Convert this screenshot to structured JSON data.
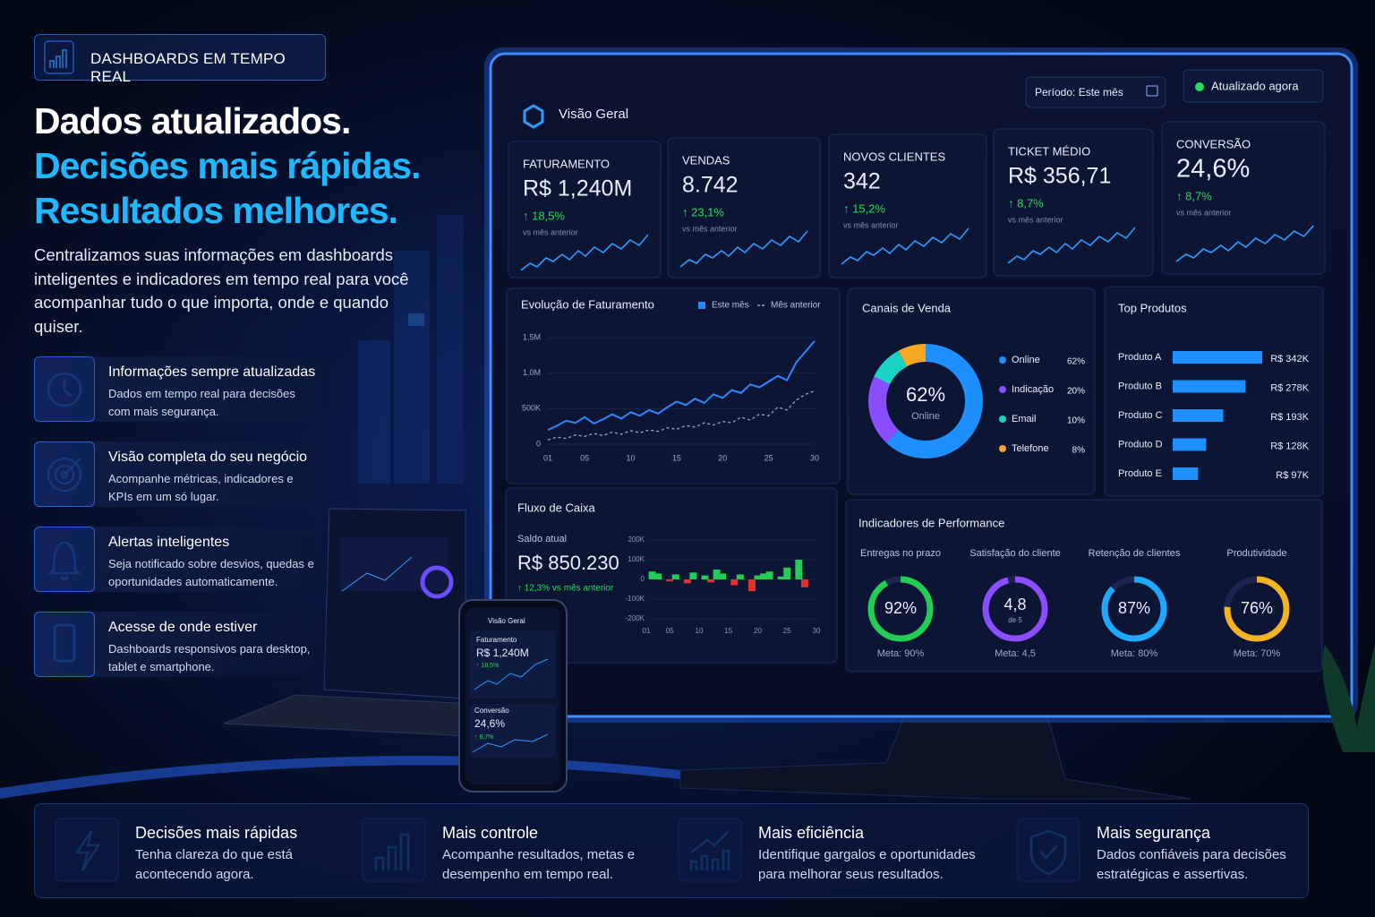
{
  "badge": "DASHBOARDS EM TEMPO REAL",
  "headline": [
    "Dados atualizados.",
    "Decisões mais rápidas.",
    "Resultados melhores."
  ],
  "intro": "Centralizamos suas informações em dashboards inteligentes e indicadores em tempo real para você acompanhar tudo o que importa, onde e quando quiser.",
  "features": [
    {
      "title": "Informações sempre atualizadas",
      "text": "Dados em tempo real para decisões com mais segurança."
    },
    {
      "title": "Visão completa do seu negócio",
      "text": "Acompanhe métricas, indicadores e KPIs em um só lugar."
    },
    {
      "title": "Alertas inteligentes",
      "text": "Seja notificado sobre desvios, quedas e oportunidades automaticamente."
    },
    {
      "title": "Acesse de onde estiver",
      "text": "Dashboards responsivos para desktop, tablet e smartphone."
    }
  ],
  "benefits": [
    {
      "title": "Decisões mais rápidas",
      "text": "Tenha clareza do que está acontecendo agora."
    },
    {
      "title": "Mais controle",
      "text": "Acompanhe resultados, metas e desempenho em tempo real."
    },
    {
      "title": "Mais eficiência",
      "text": "Identifique gargalos e oportunidades para melhorar seus resultados."
    },
    {
      "title": "Mais segurança",
      "text": "Dados confiáveis para decisões estratégicas e assertivas."
    }
  ],
  "dashboard": {
    "title": "Visão Geral",
    "period": "Período: Este mês",
    "status": "Atualizado agora",
    "kpis": [
      {
        "label": "FATURAMENTO",
        "value": "R$ 1,240M",
        "change": "↑ 18,5%",
        "note": "vs mês anterior"
      },
      {
        "label": "VENDAS",
        "value": "8.742",
        "change": "↑ 23,1%",
        "note": "vs mês anterior"
      },
      {
        "label": "NOVOS CLIENTES",
        "value": "342",
        "change": "↑ 15,2%",
        "note": "vs mês anterior"
      },
      {
        "label": "TICKET MÉDIO",
        "value": "R$ 356,71",
        "change": "↑ 8,7%",
        "note": "vs mês anterior"
      },
      {
        "label": "CONVERSÃO",
        "value": "24,6%",
        "change": "↑ 8,7%",
        "note": "vs mês anterior"
      }
    ],
    "revenue_chart": {
      "type": "line",
      "title": "Evolução de Faturamento",
      "x": [
        1,
        2,
        3,
        4,
        5,
        6,
        7,
        8,
        9,
        10,
        11,
        12,
        13,
        14,
        15,
        16,
        17,
        18,
        19,
        20,
        21,
        22,
        23,
        24,
        25,
        26,
        27,
        28,
        29,
        30
      ],
      "series": [
        {
          "name": "Este mês",
          "color": "#2f86ff",
          "values": [
            200000,
            260000,
            330000,
            300000,
            380000,
            290000,
            350000,
            420000,
            360000,
            450000,
            400000,
            480000,
            430000,
            520000,
            600000,
            550000,
            640000,
            580000,
            700000,
            650000,
            760000,
            720000,
            840000,
            800000,
            880000,
            960000,
            900000,
            1150000,
            1300000,
            1450000
          ]
        },
        {
          "name": "Mês anterior",
          "color": "#9aa8c8",
          "values": [
            60000,
            100000,
            80000,
            130000,
            110000,
            150000,
            120000,
            170000,
            140000,
            190000,
            160000,
            200000,
            180000,
            230000,
            210000,
            260000,
            240000,
            300000,
            270000,
            320000,
            300000,
            380000,
            340000,
            420000,
            400000,
            520000,
            480000,
            620000,
            700000,
            750000
          ]
        }
      ],
      "xlim": [
        1,
        30
      ],
      "xticks": [
        {
          "value": 1,
          "label": "01"
        },
        {
          "value": 5,
          "label": "05"
        },
        10,
        15,
        20,
        25,
        30
      ],
      "ylim": [
        0,
        1600000
      ],
      "yticks": [
        0,
        {
          "value": 500000,
          "label": "500K"
        },
        {
          "value": 1000000,
          "label": "1.0M"
        },
        {
          "value": 1500000,
          "label": "1.5M"
        }
      ]
    },
    "channels": {
      "type": "donut",
      "title": "Canais de Venda",
      "categories": [
        "Online",
        "Indicação",
        "Email",
        "Telefone"
      ],
      "values": [
        62,
        20,
        10,
        8
      ],
      "value_labels": [
        "62%",
        "20%",
        "10%",
        "8%"
      ],
      "colors": [
        "#1e8fff",
        "#8a4dff",
        "#19d3c5",
        "#f5a623"
      ]
    },
    "top_products": {
      "type": "hbar",
      "title": "Top Produtos",
      "categories": [
        "Produto A",
        "Produto B",
        "Produto C",
        "Produto D",
        "Produto E"
      ],
      "values": [
        342000,
        278000,
        193000,
        128000,
        97000
      ],
      "value_labels": [
        "R$ 342K",
        "R$ 278K",
        "R$ 193K",
        "R$ 128K",
        "R$ 97K"
      ],
      "color": "#1e8fff"
    },
    "cash_flow": {
      "type": "bar",
      "title": "Fluxo de Caixa",
      "balance_label": "Saldo atual",
      "balance": "R$ 850.230",
      "change": "↑ 12,3% vs mês anterior",
      "x": [
        2,
        3,
        5,
        6,
        8,
        9,
        11,
        12,
        13,
        14,
        16,
        17,
        19,
        20,
        21,
        22,
        24,
        25,
        27,
        28
      ],
      "values": [
        40000,
        30000,
        -10000,
        25000,
        -20000,
        35000,
        20000,
        -15000,
        50000,
        30000,
        -30000,
        25000,
        -60000,
        20000,
        30000,
        40000,
        15000,
        60000,
        100000,
        -40000
      ],
      "pos_color": "#22cc55",
      "neg_color": "#e0302f",
      "xlim": [
        1,
        30
      ],
      "xticks": [
        {
          "value": 1,
          "label": "01"
        },
        {
          "value": 5,
          "label": "05"
        },
        10,
        15,
        20,
        25,
        30
      ],
      "ylim": [
        -200000,
        200000
      ],
      "yticks": [
        {
          "value": -200000,
          "label": "-200K"
        },
        {
          "value": -100000,
          "label": "-100K"
        },
        0,
        {
          "value": 100000,
          "label": "100K"
        },
        {
          "value": 200000,
          "label": "200K"
        }
      ]
    },
    "performance": {
      "title": "Indicadores de Performance",
      "items": [
        {
          "label": "Entregas no prazo",
          "value": 92,
          "value_label": "92%",
          "target": "Meta: 90%",
          "color": "#22cc55"
        },
        {
          "label": "Satisfação do cliente",
          "value": 4.8,
          "value_label": "4,8",
          "max": {
            "value": 5,
            "label": "de 5"
          },
          "target": "Meta: 4,5",
          "color": "#8a4dff"
        },
        {
          "label": "Retenção de clientes",
          "value": 87,
          "value_label": "87%",
          "target": "Meta: 80%",
          "color": "#1ea8ff"
        },
        {
          "label": "Produtividade",
          "value": 76,
          "value_label": "76%",
          "target": "Meta: 70%",
          "color": "#f5b323"
        }
      ]
    }
  },
  "phone": {
    "title": "Visão Geral",
    "kpi1_label": "Faturamento",
    "kpi1_value": "R$ 1,240M",
    "kpi1_change": "↑ 18,5%",
    "kpi2_label": "Conversão",
    "kpi2_value": "24,6%",
    "kpi2_change": "↑ 8,7%"
  }
}
